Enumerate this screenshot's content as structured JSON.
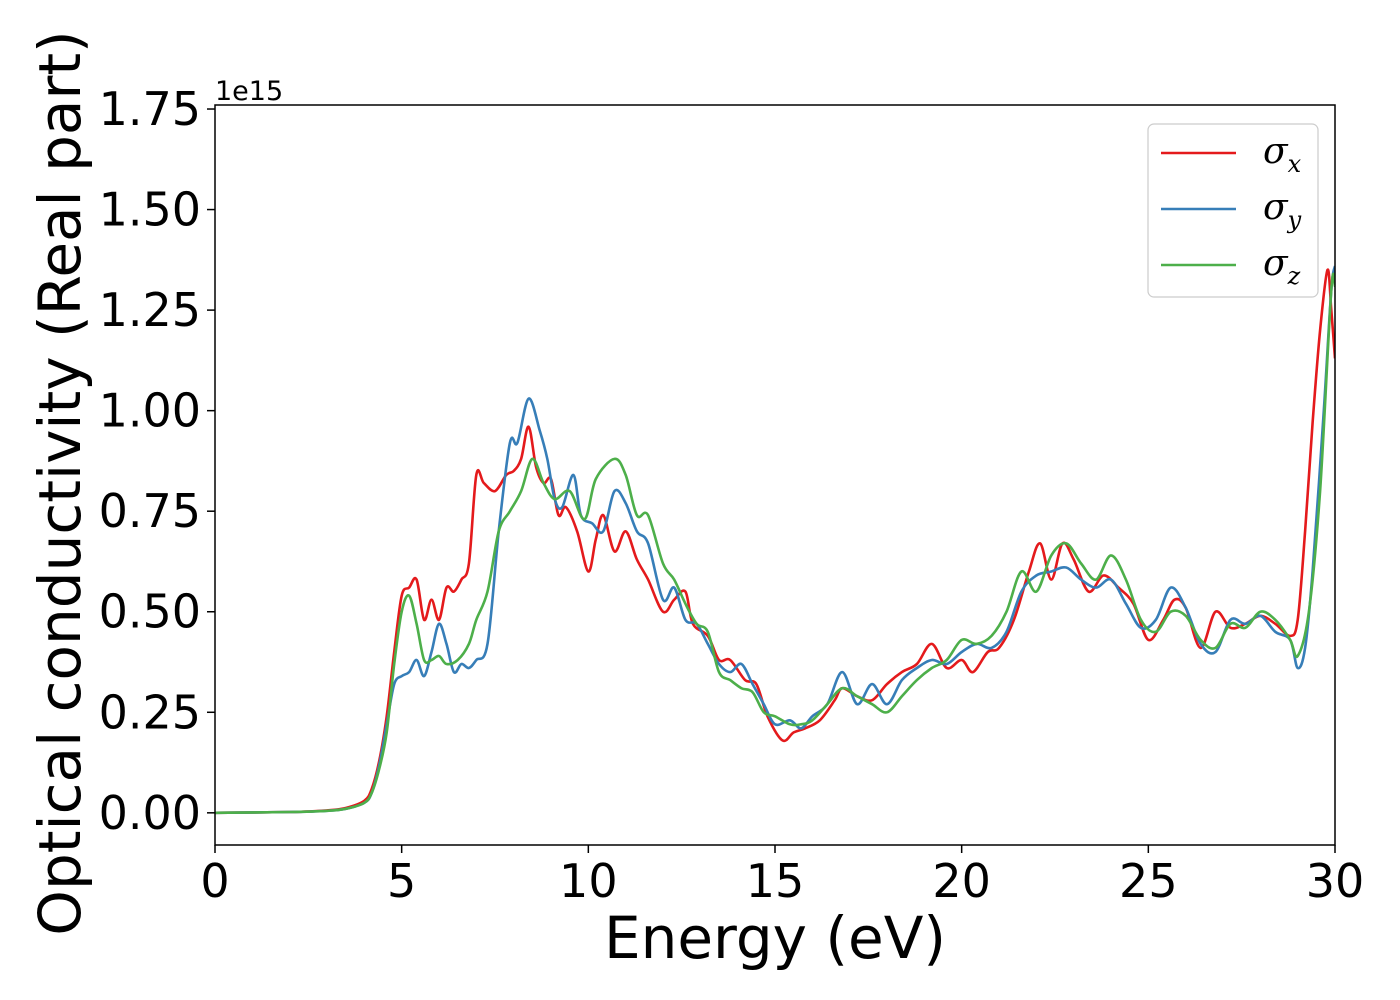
{
  "chart_data": {
    "type": "line",
    "title": "",
    "xlabel": "Energy (eV)",
    "ylabel": "Optical conductivity (Real part)",
    "y_offset_label": "1e15",
    "y_scale": 1000000000000000.0,
    "xlim": [
      0,
      30
    ],
    "ylim": [
      -0.08,
      1.76
    ],
    "xticks": [
      0,
      5,
      10,
      15,
      20,
      25,
      30
    ],
    "yticks": [
      0.0,
      0.25,
      0.5,
      0.75,
      1.0,
      1.25,
      1.5,
      1.75
    ],
    "xtick_labels": [
      "0",
      "5",
      "10",
      "15",
      "20",
      "25",
      "30"
    ],
    "ytick_labels": [
      "0.00",
      "0.25",
      "0.50",
      "0.75",
      "1.00",
      "1.25",
      "1.50",
      "1.75"
    ],
    "grid": false,
    "legend_position": "top-right",
    "series": [
      {
        "name": "σx",
        "symbol": "σ",
        "subscript": "x",
        "color": "#e41a1c",
        "points": [
          [
            0,
            0
          ],
          [
            2,
            0.002
          ],
          [
            3,
            0.006
          ],
          [
            3.5,
            0.012
          ],
          [
            4,
            0.03
          ],
          [
            4.2,
            0.06
          ],
          [
            4.4,
            0.13
          ],
          [
            4.6,
            0.24
          ],
          [
            4.8,
            0.4
          ],
          [
            5,
            0.54
          ],
          [
            5.2,
            0.56
          ],
          [
            5.4,
            0.58
          ],
          [
            5.6,
            0.48
          ],
          [
            5.8,
            0.53
          ],
          [
            6,
            0.48
          ],
          [
            6.2,
            0.56
          ],
          [
            6.4,
            0.55
          ],
          [
            6.6,
            0.58
          ],
          [
            6.8,
            0.62
          ],
          [
            7,
            0.84
          ],
          [
            7.2,
            0.82
          ],
          [
            7.5,
            0.8
          ],
          [
            7.8,
            0.84
          ],
          [
            8,
            0.85
          ],
          [
            8.2,
            0.88
          ],
          [
            8.4,
            0.96
          ],
          [
            8.6,
            0.86
          ],
          [
            8.8,
            0.82
          ],
          [
            9,
            0.83
          ],
          [
            9.2,
            0.74
          ],
          [
            9.4,
            0.76
          ],
          [
            9.7,
            0.7
          ],
          [
            10,
            0.6
          ],
          [
            10.2,
            0.68
          ],
          [
            10.4,
            0.74
          ],
          [
            10.7,
            0.65
          ],
          [
            11,
            0.7
          ],
          [
            11.3,
            0.63
          ],
          [
            11.6,
            0.58
          ],
          [
            12,
            0.5
          ],
          [
            12.3,
            0.53
          ],
          [
            12.6,
            0.55
          ],
          [
            12.8,
            0.47
          ],
          [
            13.2,
            0.44
          ],
          [
            13.5,
            0.38
          ],
          [
            13.8,
            0.38
          ],
          [
            14.2,
            0.33
          ],
          [
            14.5,
            0.32
          ],
          [
            14.8,
            0.24
          ],
          [
            15.2,
            0.18
          ],
          [
            15.5,
            0.2
          ],
          [
            15.8,
            0.21
          ],
          [
            16.2,
            0.23
          ],
          [
            16.6,
            0.28
          ],
          [
            16.8,
            0.31
          ],
          [
            17.2,
            0.29
          ],
          [
            17.6,
            0.28
          ],
          [
            18,
            0.32
          ],
          [
            18.4,
            0.35
          ],
          [
            18.8,
            0.37
          ],
          [
            19.2,
            0.42
          ],
          [
            19.6,
            0.36
          ],
          [
            20,
            0.38
          ],
          [
            20.3,
            0.35
          ],
          [
            20.7,
            0.4
          ],
          [
            21,
            0.41
          ],
          [
            21.4,
            0.48
          ],
          [
            21.8,
            0.6
          ],
          [
            22.1,
            0.67
          ],
          [
            22.4,
            0.58
          ],
          [
            22.7,
            0.67
          ],
          [
            23,
            0.63
          ],
          [
            23.4,
            0.55
          ],
          [
            23.8,
            0.59
          ],
          [
            24.2,
            0.56
          ],
          [
            24.6,
            0.52
          ],
          [
            25,
            0.43
          ],
          [
            25.4,
            0.48
          ],
          [
            25.7,
            0.53
          ],
          [
            26,
            0.51
          ],
          [
            26.4,
            0.41
          ],
          [
            26.8,
            0.5
          ],
          [
            27.2,
            0.46
          ],
          [
            27.6,
            0.47
          ],
          [
            28,
            0.49
          ],
          [
            28.4,
            0.47
          ],
          [
            28.8,
            0.44
          ],
          [
            29,
            0.48
          ],
          [
            29.2,
            0.7
          ],
          [
            29.4,
            0.97
          ],
          [
            29.6,
            1.2
          ],
          [
            29.8,
            1.35
          ],
          [
            29.9,
            1.25
          ],
          [
            30,
            1.13
          ]
        ]
      },
      {
        "name": "σy",
        "symbol": "σ",
        "subscript": "y",
        "color": "#377eb8",
        "points": [
          [
            0,
            0
          ],
          [
            2,
            0.002
          ],
          [
            3,
            0.005
          ],
          [
            3.5,
            0.01
          ],
          [
            4,
            0.025
          ],
          [
            4.2,
            0.05
          ],
          [
            4.4,
            0.12
          ],
          [
            4.6,
            0.22
          ],
          [
            4.8,
            0.32
          ],
          [
            5,
            0.34
          ],
          [
            5.2,
            0.35
          ],
          [
            5.4,
            0.38
          ],
          [
            5.6,
            0.34
          ],
          [
            5.8,
            0.4
          ],
          [
            6,
            0.47
          ],
          [
            6.2,
            0.42
          ],
          [
            6.4,
            0.35
          ],
          [
            6.6,
            0.37
          ],
          [
            6.8,
            0.36
          ],
          [
            7,
            0.38
          ],
          [
            7.3,
            0.42
          ],
          [
            7.6,
            0.7
          ],
          [
            7.9,
            0.92
          ],
          [
            8.1,
            0.92
          ],
          [
            8.4,
            1.03
          ],
          [
            8.7,
            0.95
          ],
          [
            8.9,
            0.88
          ],
          [
            9.1,
            0.78
          ],
          [
            9.3,
            0.76
          ],
          [
            9.6,
            0.84
          ],
          [
            9.8,
            0.74
          ],
          [
            10.1,
            0.72
          ],
          [
            10.4,
            0.7
          ],
          [
            10.7,
            0.8
          ],
          [
            11,
            0.77
          ],
          [
            11.3,
            0.7
          ],
          [
            11.6,
            0.67
          ],
          [
            12,
            0.53
          ],
          [
            12.3,
            0.56
          ],
          [
            12.6,
            0.48
          ],
          [
            12.9,
            0.47
          ],
          [
            13.2,
            0.42
          ],
          [
            13.5,
            0.37
          ],
          [
            13.8,
            0.35
          ],
          [
            14.1,
            0.37
          ],
          [
            14.4,
            0.32
          ],
          [
            14.7,
            0.27
          ],
          [
            15,
            0.22
          ],
          [
            15.4,
            0.23
          ],
          [
            15.7,
            0.21
          ],
          [
            16,
            0.24
          ],
          [
            16.4,
            0.27
          ],
          [
            16.8,
            0.35
          ],
          [
            17.2,
            0.27
          ],
          [
            17.6,
            0.32
          ],
          [
            18,
            0.27
          ],
          [
            18.4,
            0.33
          ],
          [
            18.8,
            0.36
          ],
          [
            19.2,
            0.38
          ],
          [
            19.6,
            0.37
          ],
          [
            20,
            0.4
          ],
          [
            20.4,
            0.42
          ],
          [
            20.8,
            0.41
          ],
          [
            21.2,
            0.45
          ],
          [
            21.6,
            0.55
          ],
          [
            22,
            0.59
          ],
          [
            22.4,
            0.6
          ],
          [
            22.8,
            0.61
          ],
          [
            23.2,
            0.58
          ],
          [
            23.6,
            0.56
          ],
          [
            24,
            0.58
          ],
          [
            24.4,
            0.52
          ],
          [
            24.8,
            0.46
          ],
          [
            25.2,
            0.48
          ],
          [
            25.6,
            0.56
          ],
          [
            26,
            0.51
          ],
          [
            26.4,
            0.42
          ],
          [
            26.8,
            0.4
          ],
          [
            27.2,
            0.48
          ],
          [
            27.6,
            0.47
          ],
          [
            28,
            0.49
          ],
          [
            28.4,
            0.45
          ],
          [
            28.8,
            0.43
          ],
          [
            29,
            0.36
          ],
          [
            29.2,
            0.41
          ],
          [
            29.4,
            0.6
          ],
          [
            29.7,
            1.0
          ],
          [
            29.9,
            1.3
          ],
          [
            30,
            1.36
          ]
        ]
      },
      {
        "name": "σz",
        "symbol": "σ",
        "subscript": "z",
        "color": "#4daf4a",
        "points": [
          [
            0,
            0
          ],
          [
            2,
            0.002
          ],
          [
            3,
            0.005
          ],
          [
            3.5,
            0.01
          ],
          [
            4,
            0.025
          ],
          [
            4.2,
            0.05
          ],
          [
            4.4,
            0.11
          ],
          [
            4.6,
            0.2
          ],
          [
            4.8,
            0.37
          ],
          [
            5,
            0.5
          ],
          [
            5.2,
            0.54
          ],
          [
            5.4,
            0.47
          ],
          [
            5.6,
            0.38
          ],
          [
            5.8,
            0.38
          ],
          [
            6,
            0.39
          ],
          [
            6.2,
            0.37
          ],
          [
            6.5,
            0.38
          ],
          [
            6.8,
            0.42
          ],
          [
            7,
            0.48
          ],
          [
            7.3,
            0.55
          ],
          [
            7.6,
            0.7
          ],
          [
            7.9,
            0.75
          ],
          [
            8.2,
            0.8
          ],
          [
            8.5,
            0.88
          ],
          [
            8.8,
            0.82
          ],
          [
            9.1,
            0.78
          ],
          [
            9.5,
            0.8
          ],
          [
            9.9,
            0.73
          ],
          [
            10.2,
            0.83
          ],
          [
            10.7,
            0.88
          ],
          [
            11,
            0.84
          ],
          [
            11.3,
            0.74
          ],
          [
            11.6,
            0.74
          ],
          [
            12,
            0.62
          ],
          [
            12.3,
            0.58
          ],
          [
            12.6,
            0.52
          ],
          [
            12.9,
            0.47
          ],
          [
            13.2,
            0.45
          ],
          [
            13.5,
            0.35
          ],
          [
            13.8,
            0.33
          ],
          [
            14.1,
            0.31
          ],
          [
            14.4,
            0.3
          ],
          [
            14.7,
            0.25
          ],
          [
            15,
            0.24
          ],
          [
            15.4,
            0.22
          ],
          [
            15.7,
            0.22
          ],
          [
            16,
            0.23
          ],
          [
            16.4,
            0.27
          ],
          [
            16.8,
            0.31
          ],
          [
            17.2,
            0.29
          ],
          [
            17.6,
            0.27
          ],
          [
            18,
            0.25
          ],
          [
            18.4,
            0.29
          ],
          [
            18.8,
            0.33
          ],
          [
            19.2,
            0.36
          ],
          [
            19.6,
            0.38
          ],
          [
            20,
            0.43
          ],
          [
            20.4,
            0.42
          ],
          [
            20.8,
            0.44
          ],
          [
            21.2,
            0.5
          ],
          [
            21.6,
            0.6
          ],
          [
            22,
            0.55
          ],
          [
            22.4,
            0.64
          ],
          [
            22.8,
            0.67
          ],
          [
            23.2,
            0.62
          ],
          [
            23.6,
            0.58
          ],
          [
            24,
            0.64
          ],
          [
            24.4,
            0.58
          ],
          [
            24.8,
            0.48
          ],
          [
            25.2,
            0.45
          ],
          [
            25.6,
            0.5
          ],
          [
            26,
            0.49
          ],
          [
            26.4,
            0.43
          ],
          [
            26.8,
            0.41
          ],
          [
            27.2,
            0.47
          ],
          [
            27.6,
            0.46
          ],
          [
            28,
            0.5
          ],
          [
            28.4,
            0.48
          ],
          [
            28.8,
            0.43
          ],
          [
            29,
            0.39
          ],
          [
            29.3,
            0.5
          ],
          [
            29.6,
            0.8
          ],
          [
            29.9,
            1.3
          ],
          [
            30,
            1.31
          ]
        ]
      }
    ]
  }
}
